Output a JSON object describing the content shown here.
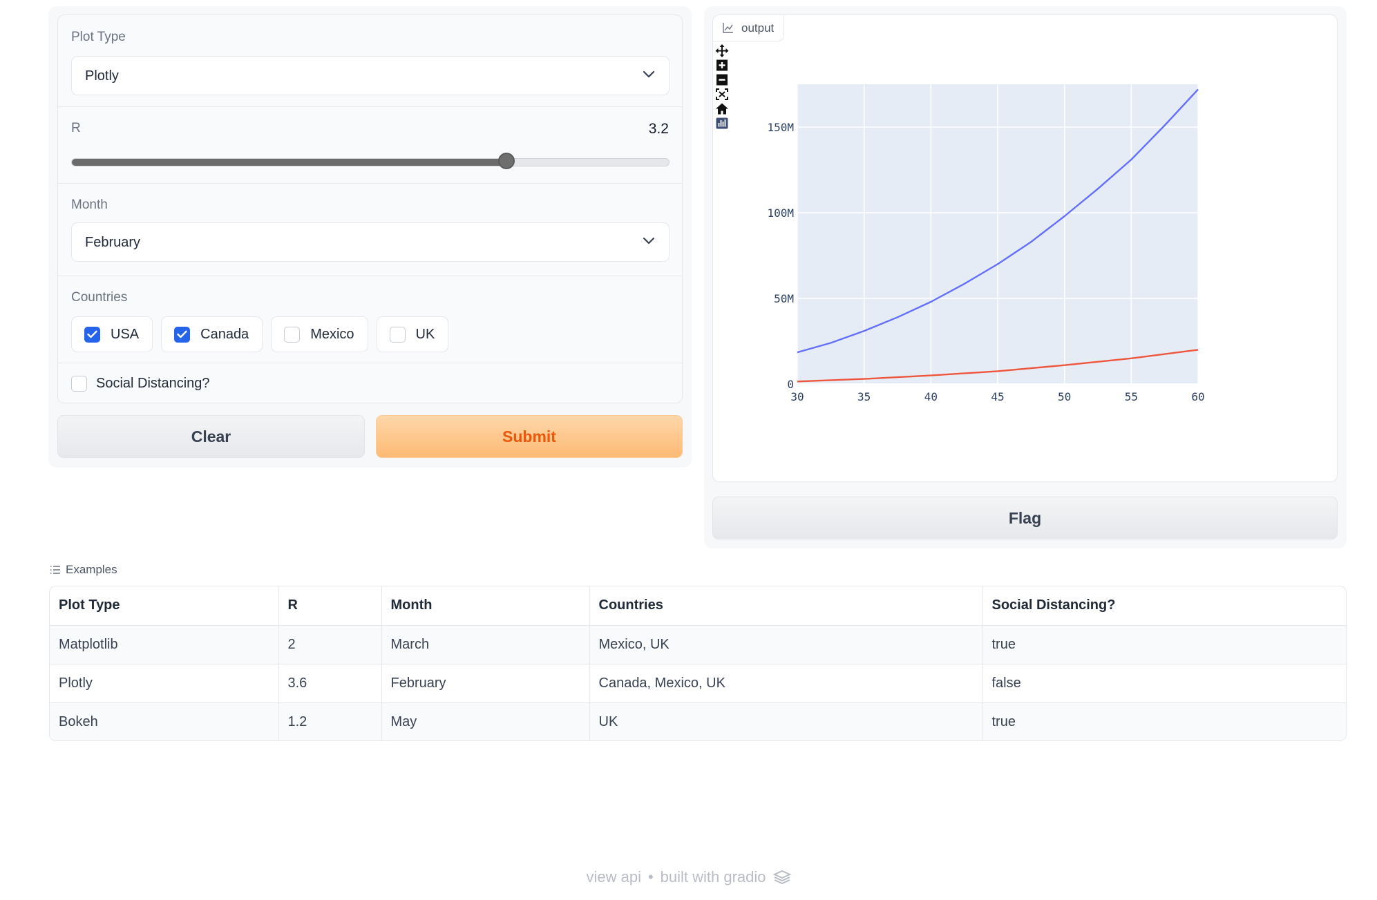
{
  "inputs": {
    "plot_type": {
      "label": "Plot Type",
      "value": "Plotly"
    },
    "r": {
      "label": "R",
      "value": "3.2",
      "fraction": 0.7273
    },
    "month": {
      "label": "Month",
      "value": "February"
    },
    "countries": {
      "label": "Countries",
      "options": [
        {
          "label": "USA",
          "checked": true
        },
        {
          "label": "Canada",
          "checked": true
        },
        {
          "label": "Mexico",
          "checked": false
        },
        {
          "label": "UK",
          "checked": false
        }
      ]
    },
    "social_distancing": {
      "label": "Social Distancing?",
      "checked": false
    }
  },
  "buttons": {
    "clear": "Clear",
    "submit": "Submit",
    "flag": "Flag"
  },
  "output": {
    "label": "output"
  },
  "chart_data": {
    "type": "line",
    "title": "",
    "xlabel": "",
    "ylabel": "",
    "xlim": [
      30,
      60
    ],
    "ylim": [
      0,
      175000000
    ],
    "x_ticks": [
      30,
      35,
      40,
      45,
      50,
      55,
      60
    ],
    "y_ticks": [
      {
        "value": 0,
        "label": "0"
      },
      {
        "value": 50000000,
        "label": "50M"
      },
      {
        "value": 100000000,
        "label": "100M"
      },
      {
        "value": 150000000,
        "label": "150M"
      }
    ],
    "grid": true,
    "background": "#e5ecf6",
    "series": [
      {
        "color": "#636efa",
        "x": [
          30,
          32.5,
          35,
          37.5,
          40,
          42.5,
          45,
          47.5,
          50,
          52.5,
          55,
          57.5,
          60
        ],
        "y": [
          18500000,
          24000000,
          31000000,
          39000000,
          48000000,
          58500000,
          70000000,
          83000000,
          98000000,
          114000000,
          131000000,
          151000000,
          172000000
        ]
      },
      {
        "color": "#ef553b",
        "x": [
          30,
          35,
          40,
          45,
          50,
          55,
          60
        ],
        "y": [
          1500000,
          3000000,
          5000000,
          7500000,
          11000000,
          15000000,
          20000000
        ]
      }
    ]
  },
  "examples": {
    "title": "Examples",
    "headers": [
      "Plot Type",
      "R",
      "Month",
      "Countries",
      "Social Distancing?"
    ],
    "rows": [
      [
        "Matplotlib",
        "2",
        "March",
        "Mexico, UK",
        "true"
      ],
      [
        "Plotly",
        "3.6",
        "February",
        "Canada, Mexico, UK",
        "false"
      ],
      [
        "Bokeh",
        "1.2",
        "May",
        "UK",
        "true"
      ]
    ]
  },
  "footer": {
    "view_api": "view api",
    "separator": "•",
    "built_with": "built with gradio"
  },
  "colors": {
    "accent": "#2563eb",
    "submit_text": "#ea580c",
    "slider": "#6b6b6b"
  }
}
